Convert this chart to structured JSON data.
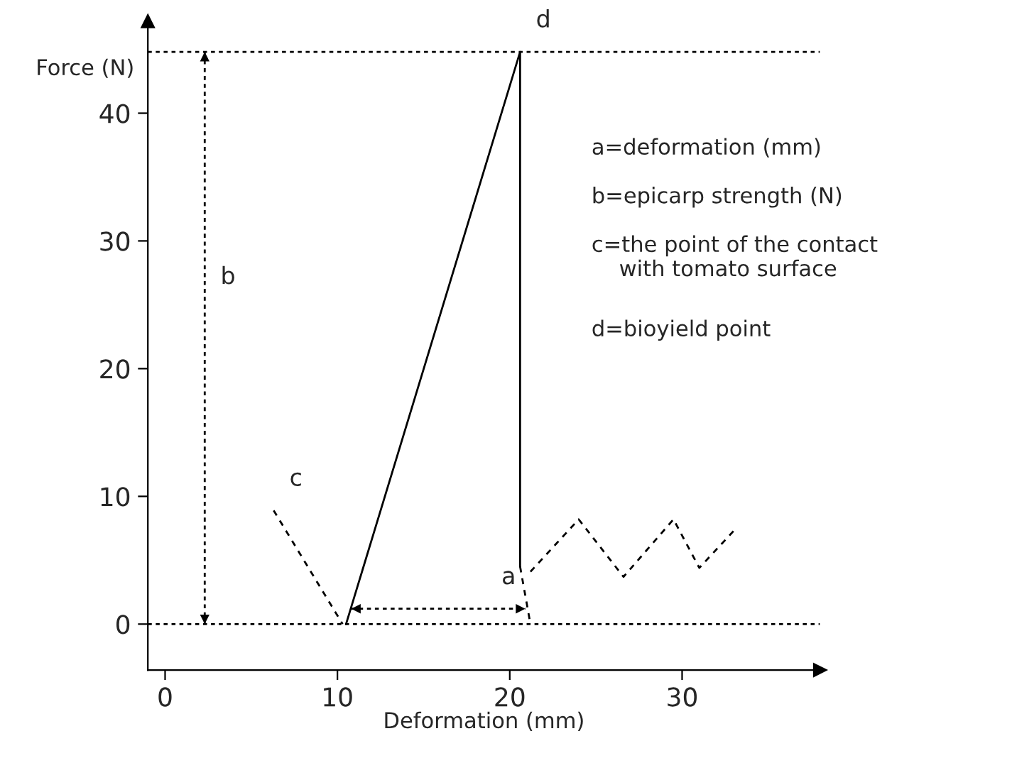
{
  "chart_data": {
    "type": "line",
    "xlabel": "Deformation (mm)",
    "ylabel": "Force (N)",
    "xlim": [
      -1,
      38
    ],
    "ylim": [
      -3.6,
      47.2
    ],
    "xticks": [
      0,
      10,
      20,
      30
    ],
    "yticks": [
      0,
      10,
      20,
      30,
      40
    ],
    "grid": false,
    "legend": false,
    "tick_labels": "xy",
    "series": [
      {
        "color": "#000000",
        "line_style": "solid",
        "marker": "none",
        "x": [
          10.5,
          20.6,
          20.6
        ],
        "values": [
          0,
          44.8,
          4.5
        ]
      },
      {
        "color": "#000000",
        "line_style": "dashed",
        "marker": "none",
        "x": [
          6.3,
          10.3
        ],
        "values": [
          8.9,
          0
        ]
      },
      {
        "color": "#000000",
        "line_style": "dashed",
        "marker": "none",
        "x": [
          20.6,
          21.2
        ],
        "values": [
          4.5,
          0
        ]
      },
      {
        "color": "#000000",
        "line_style": "dashed",
        "marker": "none",
        "x": [
          21.2,
          24.0,
          26.6,
          29.5,
          31.0,
          33.2
        ],
        "values": [
          4.1,
          8.2,
          3.7,
          8.2,
          4.4,
          7.6
        ]
      },
      {
        "color": "#000000",
        "line_style": "dotted",
        "x": [
          2.3,
          2.3,
          2.3
        ],
        "values": [
          0,
          24.7,
          44.8
        ]
      },
      {
        "color": "#000000",
        "line_style": "dotted",
        "x": [
          10.8,
          18.6,
          20.9
        ],
        "values": [
          1.2,
          1.2,
          1.2
        ]
      }
    ],
    "ref_lines": [
      {
        "axis": "y",
        "value": 0,
        "color": "#000000",
        "line_style": "dotted",
        "label": null
      },
      {
        "axis": "y",
        "value": 44.8,
        "color": "#000000",
        "line_style": "dotted",
        "label": null
      }
    ],
    "annotations": [
      {
        "text": "a",
        "x": 18.6,
        "y": 1.2
      },
      {
        "text": "b",
        "x": 2.3,
        "y": 24.7
      },
      {
        "text": "c",
        "x": 6.3,
        "y": 8.9
      },
      {
        "text": "d",
        "x": 20.6,
        "y": 44.8
      },
      "a=deformation (mm)",
      "b=epicarp strength (N)",
      "c=the point of the contact\n    with tomato surface",
      "d=bioyield point"
    ]
  }
}
